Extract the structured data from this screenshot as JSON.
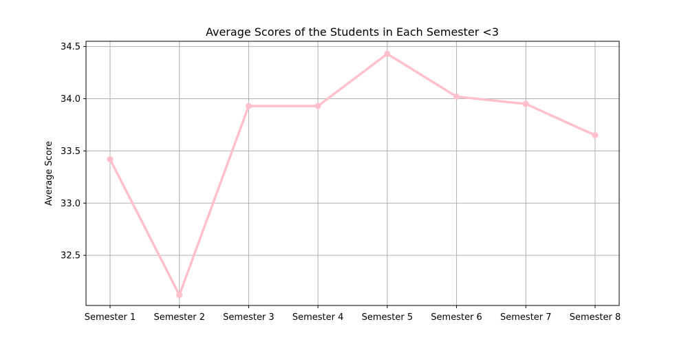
{
  "chart_data": {
    "type": "line",
    "title": "Average Scores of the Students in Each Semester <3",
    "xlabel": "",
    "ylabel": "Average Score",
    "categories": [
      "Semester 1",
      "Semester 2",
      "Semester 3",
      "Semester 4",
      "Semester 5",
      "Semester 6",
      "Semester 7",
      "Semester 8"
    ],
    "series": [
      {
        "values": [
          33.42,
          32.12,
          33.93,
          33.93,
          34.43,
          34.02,
          33.95,
          33.65
        ],
        "color": "#ffc0cb",
        "marker": "circle"
      }
    ],
    "ylim": [
      32.02,
      34.55
    ],
    "yticks": [
      32.5,
      33.0,
      33.5,
      34.0,
      34.5
    ],
    "ytick_labels": [
      "32.5",
      "33.0",
      "33.5",
      "34.0",
      "34.5"
    ],
    "grid": true,
    "legend": "none"
  }
}
